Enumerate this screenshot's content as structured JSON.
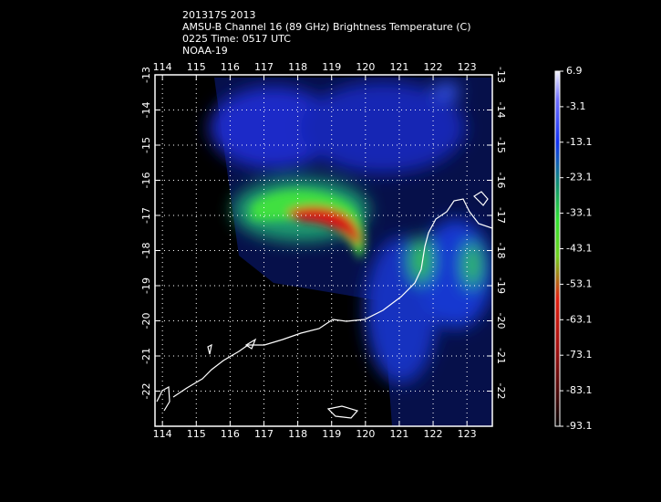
{
  "header": {
    "lines": [
      "201317S 2013",
      "AMSU-B Channel 16 (89 GHz) Brightness Temperature (C)",
      "0225 Time: 0517 UTC",
      "NOAA-19"
    ]
  },
  "map": {
    "xlim": [
      113.78,
      123.75
    ],
    "ylim": [
      -23,
      -13
    ],
    "xticks": [
      114,
      115,
      116,
      117,
      118,
      119,
      120,
      121,
      122,
      123
    ],
    "yticks": [
      -13,
      -14,
      -15,
      -16,
      -17,
      -18,
      -19,
      -20,
      -21,
      -22
    ]
  },
  "colorbar": {
    "lim": [
      -93.1,
      6.9
    ],
    "ticks": [
      6.9,
      -3.1,
      -13.1,
      -23.1,
      -33.1,
      -43.1,
      -53.1,
      -63.1,
      -73.1,
      -83.1,
      -93.1
    ]
  }
}
